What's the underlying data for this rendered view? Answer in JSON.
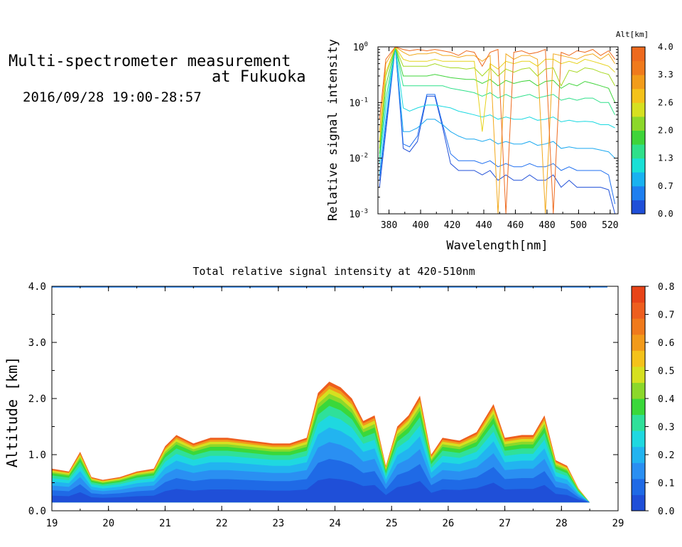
{
  "header": {
    "title_line1": "Multi-spectrometer measurement",
    "title_line2": "at Fukuoka",
    "date_range": "2016/09/28 19:00-28:57"
  },
  "chart_data": [
    {
      "type": "line",
      "title": "",
      "xlabel": "Wavelength[nm]",
      "ylabel": "Relative signal intensity",
      "xlim": [
        373,
        525
      ],
      "ylim": [
        0.001,
        1
      ],
      "yscale": "log",
      "xticks": [
        380,
        400,
        420,
        440,
        460,
        480,
        500,
        520
      ],
      "ytick_labels": [
        {
          "base": "10",
          "exp": "-3"
        },
        {
          "base": "10",
          "exp": "-2"
        },
        {
          "base": "10",
          "exp": "-1"
        },
        {
          "base": "10",
          "exp": "0"
        }
      ],
      "colorbar": {
        "label": "Alt[km]",
        "tick_labels": [
          "0.0",
          "0.7",
          "1.3",
          "2.0",
          "2.6",
          "3.3",
          "4.0"
        ],
        "colors": [
          "#1f4fd8",
          "#1e7ff0",
          "#19b2f0",
          "#19e0d6",
          "#2fe08a",
          "#3fd43a",
          "#8cd82a",
          "#d6e020",
          "#f4c21a",
          "#f29c1a",
          "#f07a1c",
          "#ee6a1e"
        ]
      },
      "x": [
        374,
        378,
        384,
        389,
        393,
        398,
        404,
        409,
        414,
        419,
        424,
        429,
        434,
        439,
        444,
        449,
        454,
        459,
        464,
        469,
        474,
        479,
        484,
        489,
        494,
        499,
        504,
        509,
        514,
        519,
        523
      ],
      "series": [
        {
          "altitude_km": 0.0,
          "color": "#1f4fd8",
          "values": [
            0.003,
            0.03,
            1.0,
            0.015,
            0.013,
            0.02,
            0.13,
            0.13,
            0.035,
            0.008,
            0.006,
            0.006,
            0.006,
            0.005,
            0.006,
            0.004,
            0.005,
            0.004,
            0.004,
            0.005,
            0.004,
            0.004,
            0.005,
            0.003,
            0.004,
            0.003,
            0.003,
            0.003,
            0.003,
            0.0027,
            0.001
          ]
        },
        {
          "altitude_km": 0.35,
          "color": "#1e6ff0",
          "values": [
            0.004,
            0.04,
            1.0,
            0.018,
            0.016,
            0.025,
            0.14,
            0.14,
            0.04,
            0.012,
            0.009,
            0.009,
            0.009,
            0.008,
            0.009,
            0.007,
            0.008,
            0.007,
            0.007,
            0.008,
            0.007,
            0.007,
            0.008,
            0.006,
            0.007,
            0.006,
            0.006,
            0.006,
            0.006,
            0.005,
            0.0015
          ]
        },
        {
          "altitude_km": 0.7,
          "color": "#19a8f0",
          "values": [
            0.005,
            0.05,
            1.0,
            0.03,
            0.03,
            0.035,
            0.05,
            0.05,
            0.04,
            0.03,
            0.025,
            0.022,
            0.022,
            0.02,
            0.022,
            0.018,
            0.02,
            0.018,
            0.018,
            0.02,
            0.017,
            0.018,
            0.02,
            0.015,
            0.016,
            0.015,
            0.015,
            0.015,
            0.014,
            0.013,
            0.01
          ]
        },
        {
          "altitude_km": 1.0,
          "color": "#19d8e0",
          "values": [
            0.008,
            0.08,
            1.0,
            0.08,
            0.07,
            0.08,
            0.09,
            0.09,
            0.085,
            0.08,
            0.07,
            0.065,
            0.06,
            0.055,
            0.06,
            0.05,
            0.055,
            0.05,
            0.05,
            0.055,
            0.048,
            0.05,
            0.055,
            0.045,
            0.048,
            0.045,
            0.046,
            0.045,
            0.04,
            0.04,
            0.035
          ]
        },
        {
          "altitude_km": 1.5,
          "color": "#2fe08a",
          "values": [
            0.01,
            0.12,
            1.0,
            0.2,
            0.2,
            0.2,
            0.2,
            0.2,
            0.2,
            0.18,
            0.17,
            0.16,
            0.15,
            0.13,
            0.15,
            0.12,
            0.14,
            0.12,
            0.13,
            0.14,
            0.12,
            0.13,
            0.14,
            0.11,
            0.12,
            0.11,
            0.12,
            0.12,
            0.1,
            0.1,
            0.06
          ]
        },
        {
          "altitude_km": 2.0,
          "color": "#3fd43a",
          "values": [
            0.012,
            0.2,
            1.0,
            0.3,
            0.3,
            0.3,
            0.3,
            0.32,
            0.3,
            0.28,
            0.27,
            0.26,
            0.26,
            0.22,
            0.26,
            0.2,
            0.25,
            0.22,
            0.24,
            0.25,
            0.2,
            0.24,
            0.25,
            0.18,
            0.22,
            0.2,
            0.24,
            0.22,
            0.2,
            0.18,
            0.1
          ]
        },
        {
          "altitude_km": 2.5,
          "color": "#a6d820",
          "values": [
            0.015,
            0.3,
            1.0,
            0.45,
            0.45,
            0.45,
            0.45,
            0.5,
            0.45,
            0.42,
            0.42,
            0.4,
            0.42,
            0.3,
            0.42,
            0.3,
            0.4,
            0.35,
            0.4,
            0.42,
            0.3,
            0.4,
            0.42,
            0.2,
            0.38,
            0.35,
            0.42,
            0.4,
            0.35,
            0.32,
            0.2
          ]
        },
        {
          "altitude_km": 3.0,
          "color": "#e6d21c",
          "values": [
            0.02,
            0.35,
            1.0,
            0.6,
            0.55,
            0.55,
            0.55,
            0.6,
            0.55,
            0.55,
            0.55,
            0.55,
            0.55,
            0.03,
            0.5,
            0.4,
            0.55,
            0.5,
            0.55,
            0.55,
            0.45,
            0.6,
            0.6,
            0.5,
            0.55,
            0.5,
            0.6,
            0.55,
            0.5,
            0.45,
            0.35
          ]
        },
        {
          "altitude_km": 3.5,
          "color": "#f2a81a",
          "values": [
            0.03,
            0.5,
            1.0,
            0.8,
            0.7,
            0.75,
            0.75,
            0.8,
            0.7,
            0.7,
            0.65,
            0.7,
            0.7,
            0.55,
            0.7,
            0.001,
            0.75,
            0.6,
            0.7,
            0.7,
            0.6,
            0.001,
            0.75,
            0.7,
            0.65,
            0.6,
            0.7,
            0.75,
            0.6,
            0.75,
            0.5
          ]
        },
        {
          "altitude_km": 4.0,
          "color": "#ee6a1e",
          "values": [
            0.05,
            0.6,
            1.0,
            0.9,
            0.85,
            0.9,
            0.85,
            0.9,
            0.85,
            0.8,
            0.7,
            0.85,
            0.8,
            0.45,
            0.8,
            0.9,
            0.001,
            0.8,
            0.85,
            0.75,
            0.8,
            0.9,
            0.001,
            0.8,
            0.7,
            0.85,
            0.8,
            0.9,
            0.7,
            0.85,
            0.6
          ]
        }
      ]
    },
    {
      "type": "heatmap",
      "title": "Total relative signal intensity at 420-510nm",
      "xlabel": "",
      "ylabel": "Altitude [km]",
      "xlim": [
        19,
        29
      ],
      "ylim": [
        0,
        4
      ],
      "xticks": [
        19,
        20,
        21,
        22,
        23,
        24,
        25,
        26,
        27,
        28,
        29
      ],
      "ytick_labels": [
        "0.0",
        "1.0",
        "2.0",
        "3.0",
        "4.0"
      ],
      "yticks": [
        0,
        1,
        2,
        3,
        4
      ],
      "colorbar": {
        "tick_labels": [
          "0.0",
          "0.1",
          "0.2",
          "0.3",
          "0.4",
          "0.5",
          "0.6",
          "0.7",
          "0.8"
        ],
        "colors": [
          "#1f4fd8",
          "#1f6ae6",
          "#2a8ff2",
          "#22b4f0",
          "#1fd8e0",
          "#2fe09a",
          "#3ad83a",
          "#8cd82a",
          "#d6e020",
          "#f4c21a",
          "#f29a1a",
          "#f07a1c",
          "#ee5e1e",
          "#e84418"
        ]
      },
      "boundary_layer_top_km": {
        "time_h": [
          19.0,
          19.3,
          19.5,
          19.7,
          19.9,
          20.2,
          20.5,
          20.8,
          21.0,
          21.2,
          21.5,
          21.8,
          22.1,
          22.5,
          22.9,
          23.2,
          23.5,
          23.7,
          23.9,
          24.1,
          24.3,
          24.5,
          24.7,
          24.9,
          25.1,
          25.3,
          25.5,
          25.7,
          25.9,
          26.2,
          26.5,
          26.8,
          27.0,
          27.3,
          27.5,
          27.7,
          27.9,
          28.1,
          28.3,
          28.5
        ],
        "value": [
          0.75,
          0.7,
          1.05,
          0.6,
          0.55,
          0.6,
          0.7,
          0.75,
          1.15,
          1.35,
          1.2,
          1.3,
          1.3,
          1.25,
          1.2,
          1.2,
          1.3,
          2.1,
          2.3,
          2.2,
          2.0,
          1.6,
          1.7,
          0.8,
          1.5,
          1.7,
          2.05,
          1.0,
          1.3,
          1.25,
          1.4,
          1.9,
          1.3,
          1.35,
          1.35,
          1.7,
          0.9,
          0.8,
          0.4,
          0.1
        ]
      }
    }
  ]
}
